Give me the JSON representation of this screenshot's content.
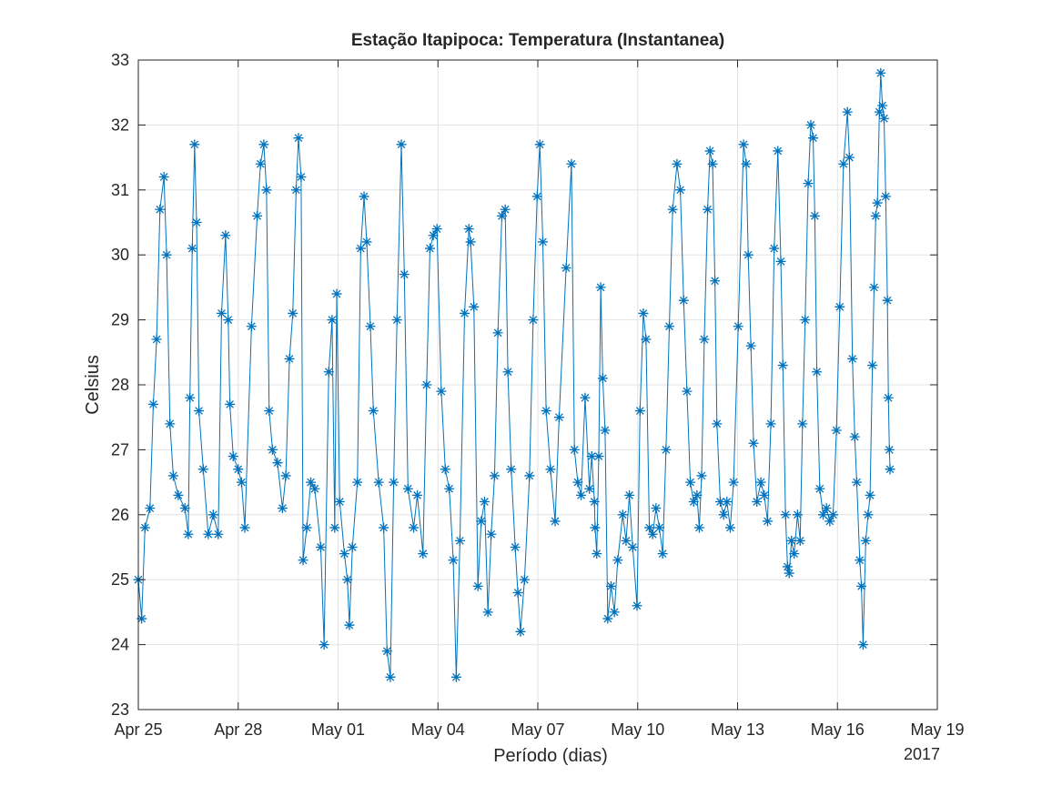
{
  "chart_data": {
    "type": "line",
    "title": "Estação Itapipoca: Temperatura (Instantanea)",
    "xlabel": "Período (dias)",
    "ylabel": "Celsius",
    "annotation": "2017",
    "xlim": [
      0,
      24
    ],
    "xticks": [
      {
        "value": 0,
        "label": "Apr 25"
      },
      {
        "value": 3,
        "label": "Apr 28"
      },
      {
        "value": 6,
        "label": "May 01"
      },
      {
        "value": 9,
        "label": "May 04"
      },
      {
        "value": 12,
        "label": "May 07"
      },
      {
        "value": 15,
        "label": "May 10"
      },
      {
        "value": 18,
        "label": "May 13"
      },
      {
        "value": 21,
        "label": "May 16"
      },
      {
        "value": 24,
        "label": "May 19"
      }
    ],
    "ylim": [
      23,
      33
    ],
    "yticks": [
      23,
      24,
      25,
      26,
      27,
      28,
      29,
      30,
      31,
      32,
      33
    ],
    "grid": true,
    "marker": "*",
    "color": "#0072bd",
    "x": [
      0,
      0.1,
      0.2,
      0.35,
      0.45,
      0.55,
      0.65,
      0.77,
      0.85,
      0.95,
      1.05,
      1.2,
      1.4,
      1.5,
      1.55,
      1.62,
      1.69,
      1.75,
      1.82,
      1.95,
      2.1,
      2.25,
      2.4,
      2.5,
      2.62,
      2.7,
      2.75,
      2.85,
      3.0,
      3.1,
      3.2,
      3.4,
      3.57,
      3.67,
      3.77,
      3.85,
      3.93,
      4.03,
      4.18,
      4.33,
      4.43,
      4.54,
      4.64,
      4.74,
      4.81,
      4.89,
      4.95,
      5.06,
      5.18,
      5.3,
      5.48,
      5.58,
      5.72,
      5.82,
      5.9,
      5.96,
      6.05,
      6.19,
      6.28,
      6.34,
      6.43,
      6.58,
      6.68,
      6.78,
      6.86,
      6.97,
      7.06,
      7.22,
      7.37,
      7.47,
      7.57,
      7.67,
      7.77,
      7.9,
      7.99,
      8.1,
      8.27,
      8.38,
      8.55,
      8.66,
      8.76,
      8.86,
      8.97,
      9.1,
      9.22,
      9.34,
      9.46,
      9.55,
      9.66,
      9.8,
      9.93,
      9.98,
      10.08,
      10.2,
      10.3,
      10.4,
      10.5,
      10.6,
      10.7,
      10.8,
      10.92,
      11.02,
      11.1,
      11.2,
      11.32,
      11.4,
      11.48,
      11.6,
      11.75,
      11.86,
      11.98,
      12.06,
      12.15,
      12.25,
      12.38,
      12.52,
      12.64,
      12.85,
      13.01,
      13.1,
      13.2,
      13.3,
      13.42,
      13.55,
      13.62,
      13.7,
      13.72,
      13.77,
      13.83,
      13.89,
      13.95,
      14.02,
      14.1,
      14.2,
      14.3,
      14.4,
      14.55,
      14.65,
      14.75,
      14.85,
      14.98,
      15.07,
      15.17,
      15.25,
      15.35,
      15.45,
      15.55,
      15.65,
      15.75,
      15.85,
      15.95,
      16.05,
      16.18,
      16.28,
      16.38,
      16.48,
      16.58,
      16.68,
      16.78,
      16.85,
      16.92,
      17.0,
      17.1,
      17.17,
      17.25,
      17.32,
      17.38,
      17.48,
      17.58,
      17.68,
      17.78,
      17.88,
      18.02,
      18.18,
      18.26,
      18.32,
      18.4,
      18.48,
      18.58,
      18.7,
      18.8,
      18.9,
      19.0,
      19.1,
      19.21,
      19.3,
      19.36,
      19.44,
      19.5,
      19.55,
      19.62,
      19.7,
      19.8,
      19.88,
      19.95,
      20.03,
      20.12,
      20.2,
      20.27,
      20.32,
      20.38,
      20.47,
      20.57,
      20.67,
      20.77,
      20.87,
      20.97,
      21.07,
      21.18,
      21.3,
      21.36,
      21.45,
      21.52,
      21.58,
      21.67,
      21.72,
      21.77,
      21.85,
      21.92,
      21.98,
      22.05,
      22.1,
      22.15,
      22.2,
      22.26,
      22.3,
      22.35,
      22.4,
      22.45,
      22.5,
      22.53,
      22.56,
      22.58
    ],
    "values": [
      25.0,
      24.4,
      25.8,
      26.1,
      27.7,
      28.7,
      30.7,
      31.2,
      30.0,
      27.4,
      26.6,
      26.3,
      26.1,
      25.7,
      27.8,
      30.1,
      31.7,
      30.5,
      27.6,
      26.7,
      25.7,
      26.0,
      25.7,
      29.1,
      30.3,
      29.0,
      27.7,
      26.9,
      26.7,
      26.5,
      25.8,
      28.9,
      30.6,
      31.4,
      31.7,
      31.0,
      27.6,
      27.0,
      26.8,
      26.1,
      26.6,
      28.4,
      29.1,
      31.0,
      31.8,
      31.2,
      25.3,
      25.8,
      26.5,
      26.4,
      25.5,
      24.0,
      28.2,
      29.0,
      25.8,
      29.4,
      26.2,
      25.4,
      25.0,
      24.3,
      25.5,
      26.5,
      30.1,
      30.9,
      30.2,
      28.9,
      27.6,
      26.5,
      25.8,
      23.9,
      23.5,
      26.5,
      29.0,
      31.7,
      29.7,
      26.4,
      25.8,
      26.3,
      25.4,
      28.0,
      30.1,
      30.3,
      30.4,
      27.9,
      26.7,
      26.4,
      25.3,
      23.5,
      25.6,
      29.1,
      30.4,
      30.2,
      29.2,
      24.9,
      25.9,
      26.2,
      24.5,
      25.7,
      26.6,
      28.8,
      30.6,
      30.7,
      28.2,
      26.7,
      25.5,
      24.8,
      24.2,
      25.0,
      26.6,
      29.0,
      30.9,
      31.7,
      30.2,
      27.6,
      26.7,
      25.9,
      27.5,
      29.8,
      31.4,
      27.0,
      26.5,
      26.3,
      27.8,
      26.4,
      26.9,
      26.2,
      25.8,
      25.4,
      26.9,
      29.5,
      28.1,
      27.3,
      24.4,
      24.9,
      24.5,
      25.3,
      26.0,
      25.6,
      26.3,
      25.5,
      24.6,
      27.6,
      29.1,
      28.7,
      25.8,
      25.7,
      26.1,
      25.8,
      25.4,
      27.0,
      28.9,
      30.7,
      31.4,
      31.0,
      29.3,
      27.9,
      26.5,
      26.2,
      26.3,
      25.8,
      26.6,
      28.7,
      30.7,
      31.6,
      31.4,
      29.6,
      27.4,
      26.2,
      26.0,
      26.2,
      25.8,
      26.5,
      28.9,
      31.7,
      31.4,
      30.0,
      28.6,
      27.1,
      26.2,
      26.5,
      26.3,
      25.9,
      27.4,
      30.1,
      31.6,
      29.9,
      28.3,
      26.0,
      25.2,
      25.1,
      25.6,
      25.4,
      26.0,
      25.6,
      27.4,
      29.0,
      31.1,
      32.0,
      31.8,
      30.6,
      28.2,
      26.4,
      26.0,
      26.1,
      25.9,
      26.0,
      27.3,
      29.2,
      31.4,
      32.2,
      31.5,
      28.4,
      27.2,
      26.5,
      25.3,
      24.9,
      24.0,
      25.6,
      26.0,
      26.3,
      28.3,
      29.5,
      30.6,
      30.8,
      32.2,
      32.8,
      32.3,
      32.1,
      30.9,
      29.3,
      27.8,
      27.0,
      26.7
    ]
  }
}
